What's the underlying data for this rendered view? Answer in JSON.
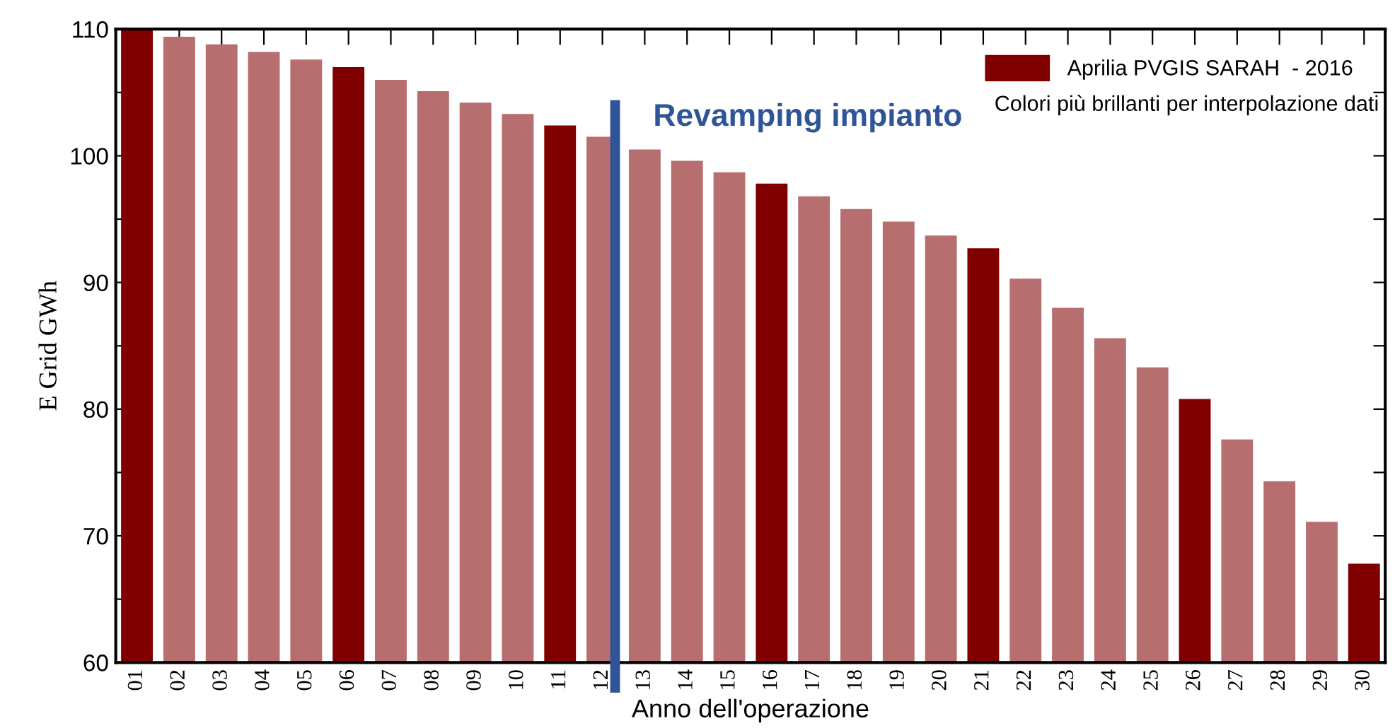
{
  "chart_data": {
    "type": "bar",
    "xlabel": "Anno dell'operazione",
    "ylabel": "E Grid GWh",
    "categories": [
      "01",
      "02",
      "03",
      "04",
      "05",
      "06",
      "07",
      "08",
      "09",
      "10",
      "11",
      "12",
      "13",
      "14",
      "15",
      "16",
      "17",
      "18",
      "19",
      "20",
      "21",
      "22",
      "23",
      "24",
      "25",
      "26",
      "27",
      "28",
      "29",
      "30"
    ],
    "series": [
      {
        "name": "Aprilia PVGIS SARAH  - 2016",
        "color": "#800000",
        "colors": [
          "#800000",
          "#b76e6e",
          "#b76e6e",
          "#b76e6e",
          "#b76e6e",
          "#800000",
          "#b76e6e",
          "#b76e6e",
          "#b76e6e",
          "#b76e6e",
          "#800000",
          "#b76e6e",
          "#b76e6e",
          "#b76e6e",
          "#b76e6e",
          "#800000",
          "#b76e6e",
          "#b76e6e",
          "#b76e6e",
          "#b76e6e",
          "#800000",
          "#b76e6e",
          "#b76e6e",
          "#b76e6e",
          "#b76e6e",
          "#800000",
          "#b76e6e",
          "#b76e6e",
          "#b76e6e",
          "#800000"
        ],
        "values": [
          110,
          109.4,
          108.8,
          108.2,
          107.6,
          107.0,
          106.0,
          105.1,
          104.2,
          103.3,
          102.4,
          101.5,
          100.5,
          99.6,
          98.7,
          97.8,
          96.8,
          95.8,
          94.8,
          93.7,
          92.7,
          90.3,
          88.0,
          85.6,
          83.3,
          80.8,
          77.6,
          74.3,
          71.1,
          67.8
        ]
      }
    ],
    "ylim": [
      60,
      110
    ],
    "yticks": [
      60,
      {
        "value": 65,
        "label": null
      },
      70,
      {
        "value": 75,
        "label": null
      },
      80,
      {
        "value": 85,
        "label": null
      },
      90,
      {
        "value": 95,
        "label": null
      },
      100,
      {
        "value": 105,
        "label": null
      },
      110
    ],
    "ref_lines": [
      {
        "axis": "x",
        "value": "12",
        "label": "Revamping impianto",
        "color": "#2f5597"
      }
    ],
    "annotations": [
      "Colori più brillanti per interpolazione dati"
    ],
    "legend": "top right",
    "grid": false
  }
}
